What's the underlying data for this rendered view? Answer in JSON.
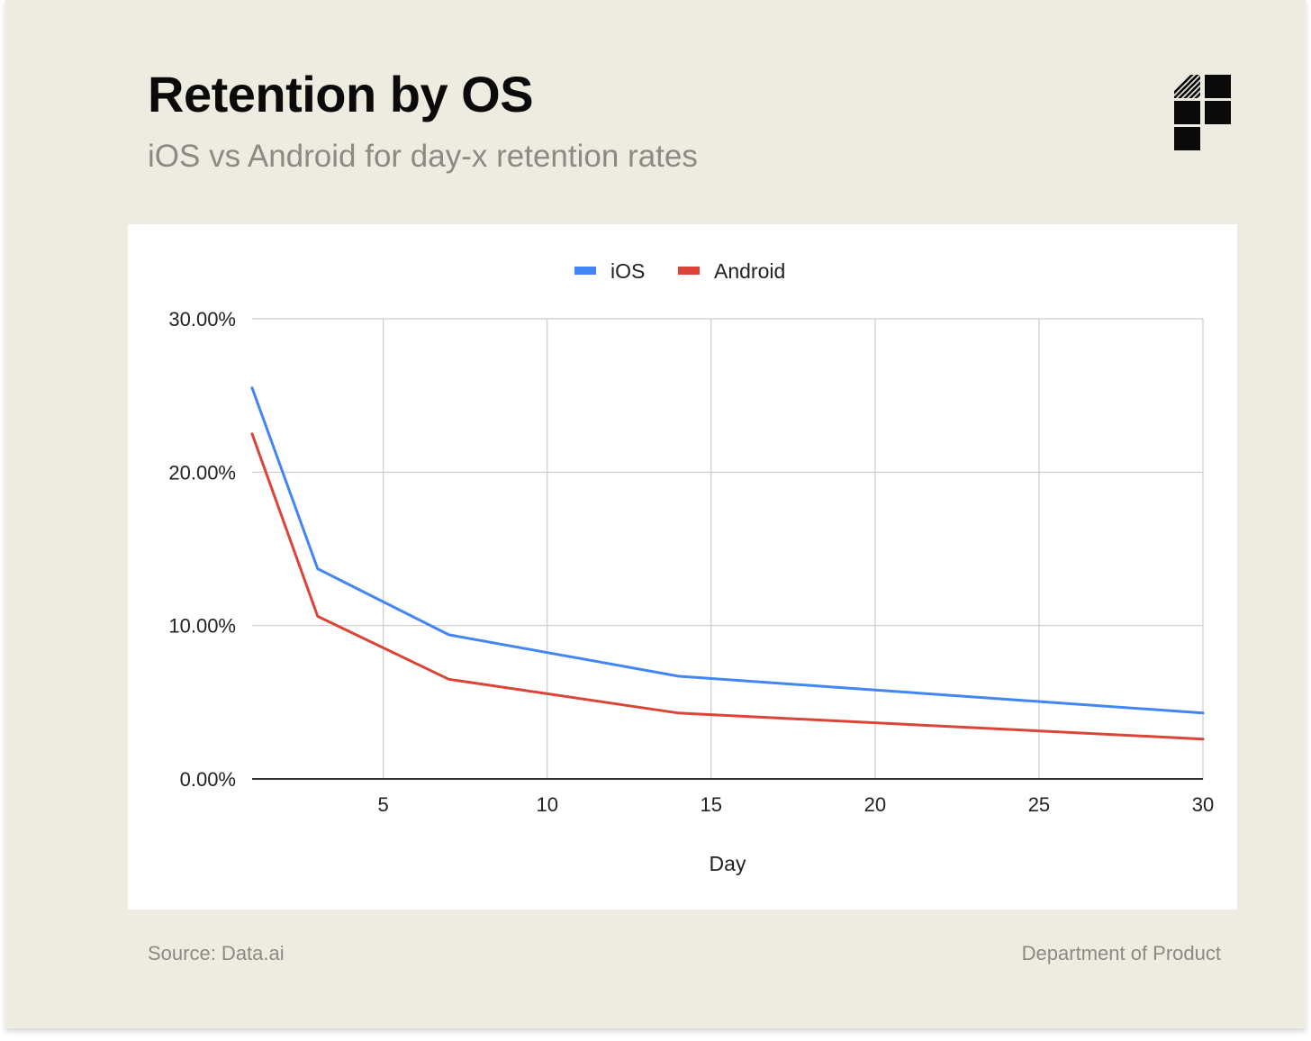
{
  "header": {
    "title": "Retention by OS",
    "subtitle": "iOS vs Android for day-x retention rates"
  },
  "logo": {
    "icon": "department-of-product-logo-icon",
    "color": "#0a0a0a"
  },
  "footer": {
    "source": "Source: Data.ai",
    "brand": "Department of Product"
  },
  "colors": {
    "background": "#eeebe1",
    "panel": "#ffffff",
    "muted_text": "#8b8b85"
  },
  "chart_data": {
    "type": "line",
    "title": "",
    "xlabel": "Day",
    "ylabel": "",
    "xlim": [
      1,
      30
    ],
    "ylim": [
      0,
      30
    ],
    "x_ticks": [
      5,
      10,
      15,
      20,
      25,
      30
    ],
    "x_tick_labels": [
      "5",
      "10",
      "15",
      "20",
      "25",
      "30"
    ],
    "y_ticks": [
      0,
      10,
      20,
      30
    ],
    "y_tick_labels": [
      "0.00%",
      "10.00%",
      "20.00%",
      "30.00%"
    ],
    "grid": true,
    "legend_position": "top-center",
    "series": [
      {
        "name": "iOS",
        "color": "#4285f4",
        "points": [
          [
            1,
            25.5
          ],
          [
            3,
            13.7
          ],
          [
            7,
            9.4
          ],
          [
            14,
            6.7
          ],
          [
            30,
            4.3
          ]
        ]
      },
      {
        "name": "Android",
        "color": "#db4437",
        "points": [
          [
            1,
            22.5
          ],
          [
            3,
            10.6
          ],
          [
            7,
            6.5
          ],
          [
            14,
            4.3
          ],
          [
            30,
            2.6
          ]
        ]
      }
    ]
  }
}
